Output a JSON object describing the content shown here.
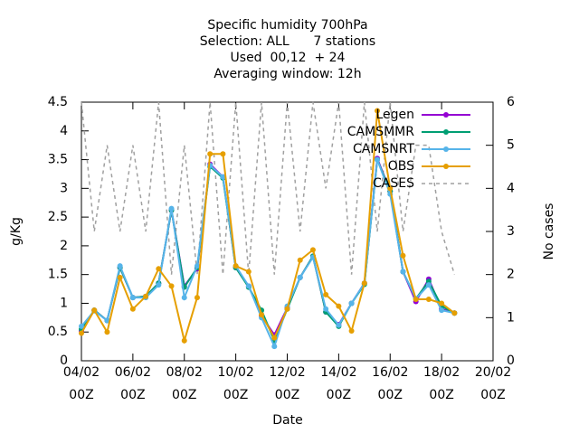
{
  "chart_data": {
    "type": "line",
    "title": [
      "Specific humidity 700hPa",
      "Selection: ALL      7 stations",
      "Used  00,12  + 24",
      "Averaging window: 12h"
    ],
    "xlabel": "Date",
    "ylabel": "g/Kg",
    "y2label": "No cases",
    "x": [
      0,
      0.5,
      1,
      1.5,
      2,
      2.5,
      3,
      3.5,
      4,
      4.5,
      5,
      5.5,
      6,
      6.5,
      7,
      7.5,
      8,
      8.5,
      9,
      9.5,
      10,
      10.5,
      11,
      11.5,
      12,
      12.5,
      13,
      13.5,
      14,
      14.5
    ],
    "xlim": [
      0,
      16
    ],
    "xticks": [
      {
        "value": 0,
        "label": "04/02\n00Z"
      },
      {
        "value": 2,
        "label": "06/02\n00Z"
      },
      {
        "value": 4,
        "label": "08/02\n00Z"
      },
      {
        "value": 6,
        "label": "10/02\n00Z"
      },
      {
        "value": 8,
        "label": "12/02\n00Z"
      },
      {
        "value": 10,
        "label": "14/02\n00Z"
      },
      {
        "value": 12,
        "label": "16/02\n00Z"
      },
      {
        "value": 14,
        "label": "18/02\n00Z"
      },
      {
        "value": 16,
        "label": "20/02\n00Z"
      }
    ],
    "ylim": [
      0,
      4.5
    ],
    "yticks": [
      0,
      0.5,
      1,
      1.5,
      2,
      2.5,
      3,
      3.5,
      4,
      4.5
    ],
    "y2lim": [
      0,
      6
    ],
    "y2ticks": [
      0,
      1,
      2,
      3,
      4,
      5,
      6
    ],
    "legend": "top-right",
    "series": [
      {
        "name": "Legen",
        "color": "#9400d3",
        "values": [
          0.52,
          0.88,
          0.7,
          1.62,
          1.1,
          1.12,
          1.35,
          2.62,
          1.3,
          1.6,
          3.42,
          3.2,
          1.62,
          1.3,
          0.78,
          0.45,
          0.92,
          1.45,
          1.82,
          0.85,
          0.63,
          1.0,
          1.35,
          3.52,
          2.95,
          1.55,
          1.03,
          1.42,
          0.9,
          0.83
        ]
      },
      {
        "name": "CAMSMMR",
        "color": "#009e73",
        "values": [
          0.55,
          0.88,
          0.7,
          1.62,
          1.1,
          1.12,
          1.35,
          2.62,
          1.28,
          1.62,
          3.38,
          3.18,
          1.62,
          1.28,
          0.88,
          0.35,
          0.9,
          1.45,
          1.82,
          0.85,
          0.6,
          1.0,
          1.33,
          3.5,
          2.95,
          1.55,
          1.08,
          1.38,
          0.95,
          0.83
        ]
      },
      {
        "name": "CAMSNRT",
        "color": "#56b4e9",
        "values": [
          0.6,
          0.87,
          0.7,
          1.65,
          1.1,
          1.1,
          1.32,
          2.65,
          1.1,
          1.65,
          3.4,
          3.2,
          1.65,
          1.3,
          0.75,
          0.25,
          0.95,
          1.45,
          1.8,
          0.9,
          0.62,
          1.0,
          1.35,
          3.5,
          2.9,
          1.55,
          1.08,
          1.32,
          0.88,
          0.83
        ]
      },
      {
        "name": "OBS",
        "color": "#e69f00",
        "values": [
          0.48,
          0.88,
          0.5,
          1.45,
          0.9,
          1.12,
          1.6,
          1.3,
          0.35,
          1.1,
          3.6,
          3.6,
          1.65,
          1.55,
          0.8,
          0.4,
          0.9,
          1.75,
          1.93,
          1.15,
          0.95,
          0.52,
          1.35,
          4.35,
          3.0,
          1.83,
          1.07,
          1.07,
          1.0,
          0.83
        ]
      },
      {
        "name": "CASES",
        "color": "#a0a0a0",
        "axis": "y2",
        "dashed": true,
        "values": [
          6,
          3,
          5,
          3,
          5,
          3,
          6,
          2,
          5,
          2,
          6,
          2,
          6,
          2,
          6,
          2,
          6,
          3,
          6,
          4,
          6,
          2,
          6,
          3,
          6,
          3,
          5,
          5,
          3,
          2
        ]
      }
    ]
  }
}
